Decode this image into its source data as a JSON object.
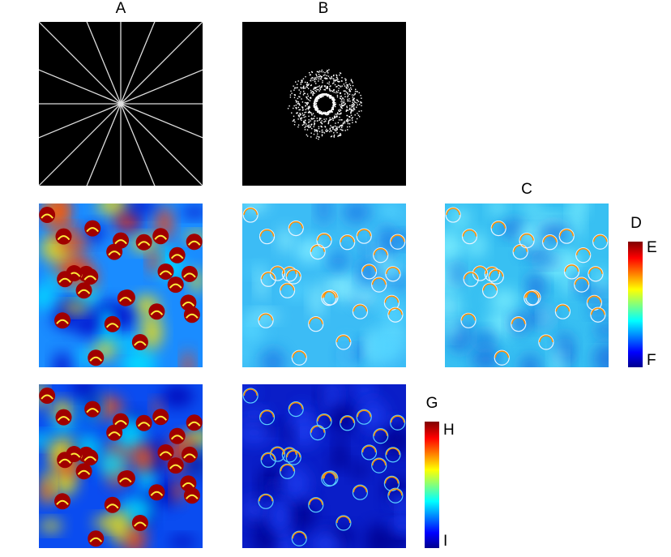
{
  "panels": {
    "A": "A",
    "B": "B",
    "C": "C"
  },
  "colorbars": [
    {
      "title": "D",
      "max_label": "E",
      "min_label": "F"
    },
    {
      "title": "G",
      "max_label": "H",
      "min_label": "I"
    }
  ]
}
